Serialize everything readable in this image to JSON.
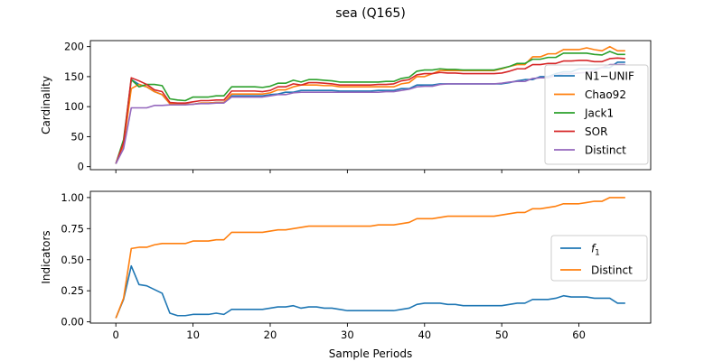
{
  "figure": {
    "title": "sea (Q165)",
    "xlabel": "Sample Periods"
  },
  "chart_data": [
    {
      "type": "line",
      "ylabel": "Cardinality",
      "xlim": [
        -3.3,
        69.3
      ],
      "ylim": [
        -5,
        210
      ],
      "xticks": [
        0,
        10,
        20,
        30,
        40,
        50,
        60
      ],
      "yticks": [
        0,
        50,
        100,
        150,
        200
      ],
      "xtick_labels_visible": false,
      "legend_placement": "right",
      "series": [
        {
          "name": "N1−UNIF",
          "color": "#1f77b4",
          "values": [
            5,
            35,
            145,
            137,
            133,
            125,
            120,
            105,
            104,
            104,
            104,
            106,
            106,
            107,
            107,
            118,
            118,
            118,
            118,
            118,
            120,
            121,
            124,
            124,
            127,
            127,
            127,
            127,
            127,
            126,
            126,
            126,
            126,
            126,
            127,
            127,
            127,
            130,
            130,
            136,
            136,
            136,
            138,
            138,
            138,
            138,
            138,
            138,
            138,
            138,
            138,
            140,
            143,
            145,
            145,
            150,
            150,
            155,
            158,
            158,
            163,
            163,
            163,
            165,
            165,
            174,
            174
          ]
        },
        {
          "name": "Chao92",
          "color": "#ff7f0e",
          "values": [
            5,
            35,
            130,
            137,
            133,
            125,
            120,
            105,
            104,
            104,
            104,
            106,
            106,
            107,
            107,
            121,
            121,
            121,
            121,
            121,
            123,
            128,
            128,
            133,
            136,
            136,
            136,
            135,
            135,
            133,
            133,
            133,
            133,
            133,
            133,
            133,
            133,
            138,
            140,
            150,
            150,
            155,
            160,
            160,
            160,
            160,
            160,
            160,
            160,
            160,
            163,
            167,
            170,
            170,
            183,
            183,
            188,
            188,
            195,
            195,
            195,
            198,
            195,
            193,
            200,
            193,
            193
          ]
        },
        {
          "name": "Jack1",
          "color": "#2ca02c",
          "values": [
            5,
            45,
            145,
            133,
            137,
            137,
            135,
            113,
            111,
            110,
            116,
            116,
            116,
            118,
            118,
            133,
            133,
            133,
            133,
            132,
            134,
            139,
            139,
            144,
            141,
            145,
            145,
            144,
            143,
            141,
            141,
            141,
            141,
            141,
            141,
            142,
            142,
            147,
            149,
            159,
            161,
            161,
            163,
            162,
            162,
            161,
            161,
            161,
            161,
            161,
            164,
            167,
            172,
            172,
            179,
            179,
            182,
            182,
            189,
            189,
            189,
            189,
            187,
            186,
            192,
            187,
            187
          ]
        },
        {
          "name": "SOR",
          "color": "#d62728",
          "values": [
            5,
            40,
            148,
            143,
            137,
            128,
            125,
            107,
            106,
            106,
            108,
            110,
            110,
            111,
            111,
            126,
            126,
            126,
            126,
            125,
            127,
            133,
            133,
            138,
            136,
            140,
            140,
            139,
            138,
            136,
            136,
            136,
            136,
            136,
            137,
            137,
            138,
            143,
            145,
            153,
            155,
            155,
            157,
            156,
            156,
            155,
            155,
            155,
            155,
            155,
            156,
            159,
            163,
            163,
            170,
            170,
            172,
            172,
            176,
            176,
            177,
            177,
            175,
            175,
            180,
            181,
            180
          ]
        },
        {
          "name": "Distinct",
          "color": "#9467bd",
          "values": [
            5,
            30,
            98,
            98,
            98,
            102,
            102,
            103,
            103,
            103,
            104,
            105,
            105,
            106,
            106,
            116,
            116,
            116,
            116,
            116,
            118,
            120,
            120,
            123,
            124,
            124,
            124,
            124,
            124,
            124,
            124,
            124,
            124,
            124,
            124,
            125,
            125,
            127,
            129,
            133,
            134,
            134,
            137,
            138,
            138,
            138,
            138,
            138,
            138,
            138,
            139,
            141,
            142,
            142,
            147,
            148,
            148,
            152,
            155,
            155,
            156,
            157,
            160,
            165,
            170,
            170,
            170
          ]
        }
      ]
    },
    {
      "type": "line",
      "ylabel": "Indicators",
      "xlim": [
        -3.3,
        69.3
      ],
      "ylim": [
        -0.01,
        1.05
      ],
      "xticks": [
        0,
        10,
        20,
        30,
        40,
        50,
        60
      ],
      "yticks": [
        0.0,
        0.25,
        0.5,
        0.75,
        1.0
      ],
      "ytick_labels": [
        "0.00",
        "0.25",
        "0.50",
        "0.75",
        "1.00"
      ],
      "legend_placement": "center right",
      "series": [
        {
          "name": "f1",
          "label_main": "f",
          "label_sub": "1",
          "color": "#1f77b4",
          "values": [
            0.03,
            0.18,
            0.45,
            0.3,
            0.29,
            0.26,
            0.23,
            0.07,
            0.05,
            0.05,
            0.06,
            0.06,
            0.06,
            0.07,
            0.06,
            0.1,
            0.1,
            0.1,
            0.1,
            0.1,
            0.11,
            0.12,
            0.12,
            0.13,
            0.11,
            0.12,
            0.12,
            0.11,
            0.11,
            0.1,
            0.09,
            0.09,
            0.09,
            0.09,
            0.09,
            0.09,
            0.09,
            0.1,
            0.11,
            0.14,
            0.15,
            0.15,
            0.15,
            0.14,
            0.14,
            0.13,
            0.13,
            0.13,
            0.13,
            0.13,
            0.13,
            0.14,
            0.15,
            0.15,
            0.18,
            0.18,
            0.18,
            0.19,
            0.21,
            0.2,
            0.2,
            0.2,
            0.19,
            0.19,
            0.19,
            0.15,
            0.15
          ]
        },
        {
          "name": "Distinct",
          "color": "#ff7f0e",
          "values": [
            0.03,
            0.19,
            0.59,
            0.6,
            0.6,
            0.62,
            0.63,
            0.63,
            0.63,
            0.63,
            0.65,
            0.65,
            0.65,
            0.66,
            0.66,
            0.72,
            0.72,
            0.72,
            0.72,
            0.72,
            0.73,
            0.74,
            0.74,
            0.75,
            0.76,
            0.77,
            0.77,
            0.77,
            0.77,
            0.77,
            0.77,
            0.77,
            0.77,
            0.77,
            0.78,
            0.78,
            0.78,
            0.79,
            0.8,
            0.83,
            0.83,
            0.83,
            0.84,
            0.85,
            0.85,
            0.85,
            0.85,
            0.85,
            0.85,
            0.85,
            0.86,
            0.87,
            0.88,
            0.88,
            0.91,
            0.91,
            0.92,
            0.93,
            0.95,
            0.95,
            0.95,
            0.96,
            0.97,
            0.97,
            1.0,
            1.0,
            1.0
          ]
        }
      ]
    }
  ]
}
